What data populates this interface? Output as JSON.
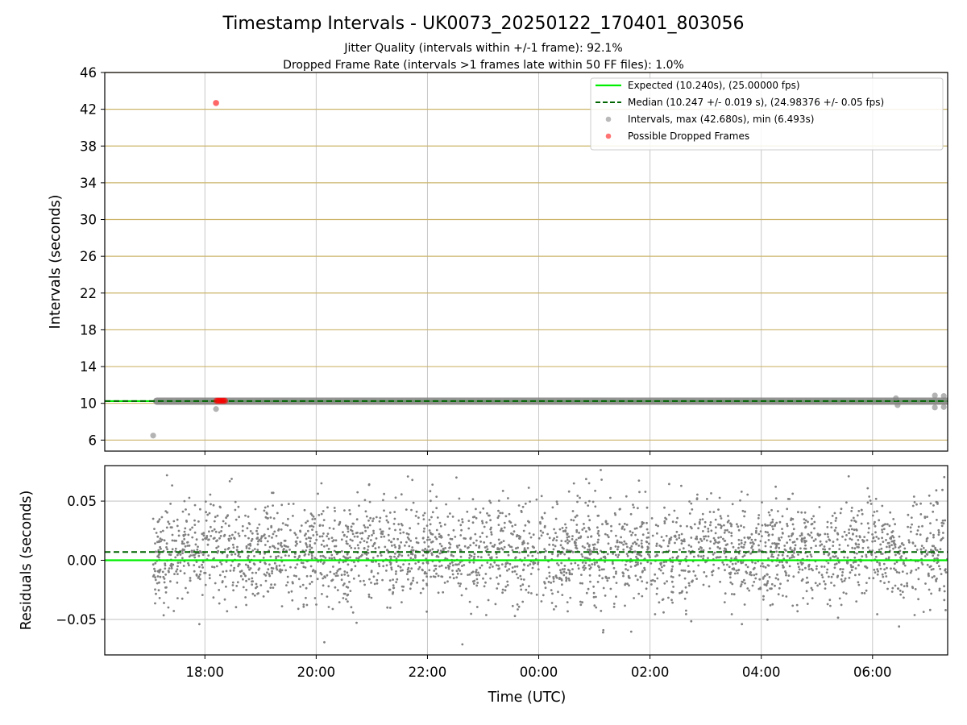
{
  "chart_data": {
    "title": "Timestamp Intervals - UK0073_20250122_170401_803056",
    "subtitle_lines": [
      "Jitter Quality (intervals within +/-1 frame): 92.1%",
      "Dropped Frame Rate (intervals >1 frames late within 50 FF files): 1.0%"
    ],
    "xlabel": "Time (UTC)",
    "x_tick_labels": [
      "18:00",
      "20:00",
      "22:00",
      "00:00",
      "02:00",
      "04:00",
      "06:00"
    ],
    "x_tick_hours": [
      18,
      20,
      22,
      24,
      26,
      28,
      30
    ],
    "x_range_hours": [
      16.2,
      31.35
    ],
    "colors": {
      "expected": "#00ee00",
      "median": "#006400",
      "intervals": "#808080",
      "dropped": "#ff0000",
      "h_grid_top": "#ccb46a",
      "grid": "#c8c8c8"
    },
    "panels": [
      {
        "id": "intervals",
        "type": "scatter",
        "ylabel": "Intervals (seconds)",
        "ylim": [
          4.8,
          46
        ],
        "yticks": [
          6,
          10,
          14,
          18,
          22,
          26,
          30,
          34,
          38,
          42,
          46
        ],
        "ytick_labels": [
          "6",
          "10",
          "14",
          "18",
          "22",
          "26",
          "30",
          "34",
          "38",
          "42",
          "46"
        ],
        "legend_position": "upper right",
        "legend": [
          {
            "label": "Expected (10.240s), (25.00000 fps)",
            "style": "solid-line",
            "color": "#00ee00"
          },
          {
            "label": "Median (10.247 +/- 0.019 s), (24.98376 +/- 0.05 fps)",
            "style": "dashed-line",
            "color": "#006400"
          },
          {
            "label": "Intervals, max (42.680s), min (6.493s)",
            "style": "marker",
            "color": "#808080"
          },
          {
            "label": "Possible Dropped Frames",
            "style": "marker",
            "color": "#ff0000"
          }
        ],
        "expected_value": 10.24,
        "median_value": 10.247,
        "band": {
          "x_start": 17.07,
          "x_end": 31.35,
          "y": 10.24
        },
        "intervals_points": [
          {
            "x": 17.07,
            "y": 6.49
          },
          {
            "x": 18.2,
            "y": 9.38
          },
          {
            "x": 30.42,
            "y": 10.55
          },
          {
            "x": 30.45,
            "y": 9.8
          },
          {
            "x": 31.12,
            "y": 10.85
          },
          {
            "x": 31.12,
            "y": 9.55
          },
          {
            "x": 31.28,
            "y": 10.8
          },
          {
            "x": 31.28,
            "y": 9.6
          }
        ],
        "dropped_points": [
          {
            "x": 18.2,
            "y": 42.68
          },
          {
            "x": 18.21,
            "y": 10.28
          },
          {
            "x": 18.24,
            "y": 10.28
          },
          {
            "x": 18.27,
            "y": 10.28
          },
          {
            "x": 18.3,
            "y": 10.28
          },
          {
            "x": 18.33,
            "y": 10.28
          },
          {
            "x": 18.36,
            "y": 10.28
          }
        ]
      },
      {
        "id": "residuals",
        "type": "scatter",
        "ylabel": "Residuals (seconds)",
        "ylim": [
          -0.08,
          0.08
        ],
        "yticks": [
          -0.05,
          0.0,
          0.05
        ],
        "ytick_labels": [
          "−0.05",
          "0.00",
          "0.05"
        ],
        "expected_value": 0.0,
        "median_value": 0.007,
        "series": {
          "name": "",
          "x_start": 17.07,
          "x_end": 31.35,
          "count": 3000,
          "mean": 0.007,
          "std": 0.022
        }
      }
    ]
  }
}
